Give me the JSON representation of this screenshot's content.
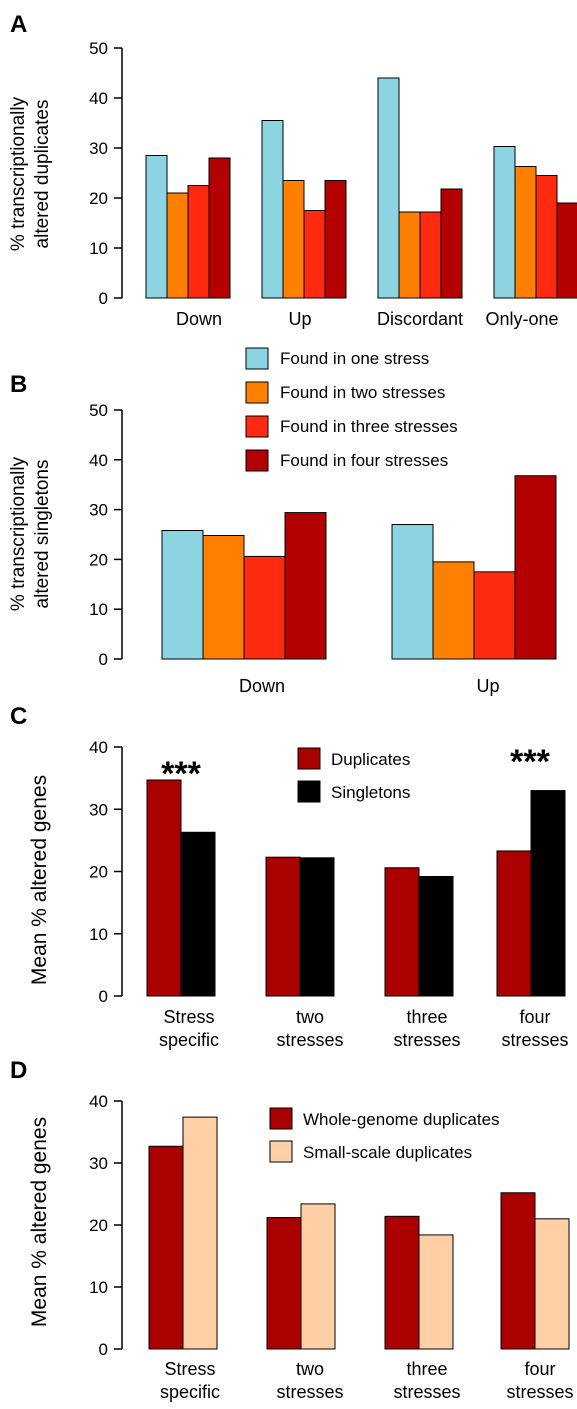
{
  "colors": {
    "one": "#8dd4e2",
    "two": "#ff7f00",
    "three": "#ff2a0f",
    "four": "#b30000",
    "duplicates": "#aa0000",
    "singletons": "#000000",
    "wgd": "#aa0000",
    "ssd": "#ffcfa5"
  },
  "chart_data": [
    {
      "panel": "A",
      "type": "bar",
      "ylabel_line1": "% transcriptionally",
      "ylabel_line2": "altered duplicates",
      "ylim": [
        0,
        50
      ],
      "yticks": [
        0,
        10,
        20,
        30,
        40,
        50
      ],
      "categories": [
        "Down",
        "Up",
        "Discordant",
        "Only-one"
      ],
      "series": [
        {
          "color_key": "one",
          "values": [
            28.5,
            35.5,
            44,
            30.3
          ]
        },
        {
          "color_key": "two",
          "values": [
            21,
            23.5,
            17.2,
            26.3
          ]
        },
        {
          "color_key": "three",
          "values": [
            22.5,
            17.5,
            17.2,
            24.5
          ]
        },
        {
          "color_key": "four",
          "values": [
            28,
            23.5,
            21.8,
            19
          ]
        }
      ]
    },
    {
      "panel": "B",
      "type": "bar",
      "ylabel_line1": "% transcriptionally",
      "ylabel_line2": "altered singletons",
      "ylim": [
        0,
        50
      ],
      "yticks": [
        0,
        10,
        20,
        30,
        40,
        50
      ],
      "categories": [
        "Down",
        "Up"
      ],
      "legend": [
        "Found in one stress",
        "Found in two stresses",
        "Found in three stresses",
        "Found in four stresses"
      ],
      "series": [
        {
          "color_key": "one",
          "values": [
            25.8,
            27
          ]
        },
        {
          "color_key": "two",
          "values": [
            24.8,
            19.5
          ]
        },
        {
          "color_key": "three",
          "values": [
            20.6,
            17.5
          ]
        },
        {
          "color_key": "four",
          "values": [
            29.4,
            36.8
          ]
        }
      ]
    },
    {
      "panel": "C",
      "type": "bar",
      "ylabel": "Mean % altered genes",
      "ylim": [
        0,
        40
      ],
      "yticks": [
        0,
        10,
        20,
        30,
        40
      ],
      "categories": [
        "Stress specific",
        "two stresses",
        "three stresses",
        "four stresses"
      ],
      "category_lines": [
        [
          "Stress",
          "specific"
        ],
        [
          "two",
          "stresses"
        ],
        [
          "three",
          "stresses"
        ],
        [
          "four",
          "stresses"
        ]
      ],
      "legend": [
        "Duplicates",
        "Singletons"
      ],
      "annotations": [
        "***",
        "***"
      ],
      "series": [
        {
          "name": "Duplicates",
          "color_key": "duplicates",
          "values": [
            34.7,
            22.3,
            20.6,
            23.3
          ]
        },
        {
          "name": "Singletons",
          "color_key": "singletons",
          "values": [
            26.3,
            22.2,
            19.2,
            33
          ]
        }
      ]
    },
    {
      "panel": "D",
      "type": "bar",
      "ylabel": "Mean % altered genes",
      "ylim": [
        0,
        40
      ],
      "yticks": [
        0,
        10,
        20,
        30,
        40
      ],
      "categories": [
        "Stress specific",
        "two stresses",
        "three stresses",
        "four stresses"
      ],
      "category_lines": [
        [
          "Stress",
          "specific"
        ],
        [
          "two",
          "stresses"
        ],
        [
          "three",
          "stresses"
        ],
        [
          "four",
          "stresses"
        ]
      ],
      "legend": [
        "Whole-genome duplicates",
        "Small-scale duplicates"
      ],
      "series": [
        {
          "name": "Whole-genome duplicates",
          "color_key": "wgd",
          "values": [
            32.7,
            21.2,
            21.4,
            25.2
          ]
        },
        {
          "name": "Small-scale duplicates",
          "color_key": "ssd",
          "values": [
            37.4,
            23.4,
            18.4,
            21
          ]
        }
      ]
    }
  ]
}
